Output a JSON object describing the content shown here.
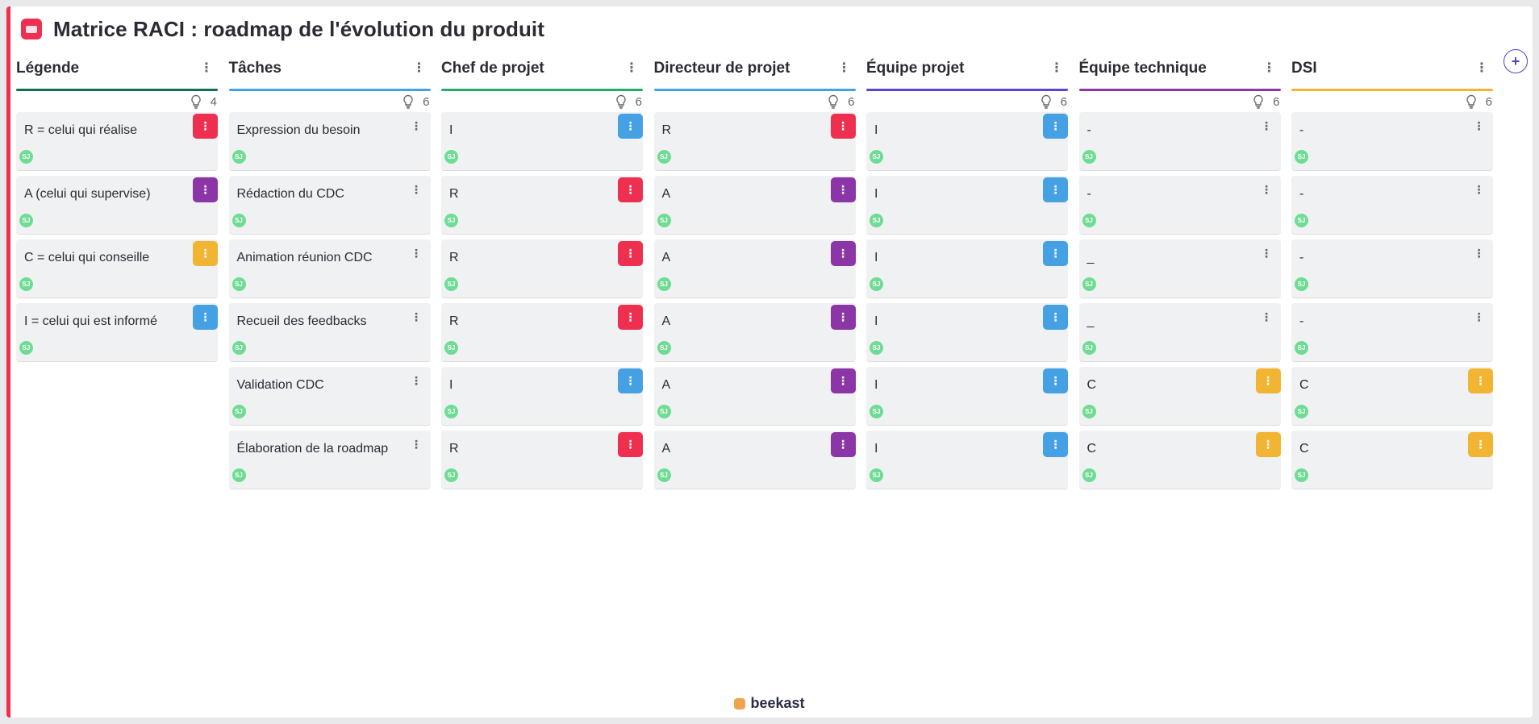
{
  "header": {
    "title": "Matrice RACI : roadmap de l'évolution du produit"
  },
  "add_column_label": "+",
  "menu_glyph": "⋮",
  "footer": {
    "brand": "beekast"
  },
  "colors": {
    "R": "#ee2f50",
    "A": "#8b35a6",
    "C": "#f1b533",
    "I": "#45a1e4",
    "none": ""
  },
  "columns": [
    {
      "title": "Légende",
      "count": "4",
      "bar": "#0d6e58",
      "cards": [
        {
          "text": "R = celui qui réalise",
          "tag": "R",
          "avatar": "SJ"
        },
        {
          "text": "A (celui qui supervise)",
          "tag": "A",
          "avatar": "SJ"
        },
        {
          "text": "C = celui qui conseille",
          "tag": "C",
          "avatar": "SJ"
        },
        {
          "text": "I = celui qui est informé",
          "tag": "I",
          "avatar": "SJ"
        }
      ]
    },
    {
      "title": "Tâches",
      "count": "6",
      "bar": "#45a1e4",
      "cards": [
        {
          "text": "Expression du besoin",
          "tag": "none",
          "avatar": "SJ"
        },
        {
          "text": "Rédaction du CDC",
          "tag": "none",
          "avatar": "SJ"
        },
        {
          "text": "Animation réunion CDC",
          "tag": "none",
          "avatar": "SJ"
        },
        {
          "text": "Recueil des feedbacks",
          "tag": "none",
          "avatar": "SJ"
        },
        {
          "text": "Validation CDC",
          "tag": "none",
          "avatar": "SJ"
        },
        {
          "text": "Élaboration de la roadmap",
          "tag": "none",
          "avatar": "SJ"
        }
      ]
    },
    {
      "title": "Chef de projet",
      "count": "6",
      "bar": "#1fae6a",
      "cards": [
        {
          "text": "I",
          "tag": "I",
          "avatar": "SJ"
        },
        {
          "text": "R",
          "tag": "R",
          "avatar": "SJ"
        },
        {
          "text": "R",
          "tag": "R",
          "avatar": "SJ"
        },
        {
          "text": "R",
          "tag": "R",
          "avatar": "SJ"
        },
        {
          "text": "I",
          "tag": "I",
          "avatar": "SJ"
        },
        {
          "text": "R",
          "tag": "R",
          "avatar": "SJ"
        }
      ]
    },
    {
      "title": "Directeur de projet",
      "count": "6",
      "bar": "#45a1e4",
      "cards": [
        {
          "text": "R",
          "tag": "R",
          "avatar": "SJ"
        },
        {
          "text": "A",
          "tag": "A",
          "avatar": "SJ"
        },
        {
          "text": "A",
          "tag": "A",
          "avatar": "SJ"
        },
        {
          "text": "A",
          "tag": "A",
          "avatar": "SJ"
        },
        {
          "text": "A",
          "tag": "A",
          "avatar": "SJ"
        },
        {
          "text": "A",
          "tag": "A",
          "avatar": "SJ"
        }
      ]
    },
    {
      "title": "Équipe projet",
      "count": "6",
      "bar": "#5b44d6",
      "cards": [
        {
          "text": "I",
          "tag": "I",
          "avatar": "SJ"
        },
        {
          "text": "I",
          "tag": "I",
          "avatar": "SJ"
        },
        {
          "text": "I",
          "tag": "I",
          "avatar": "SJ"
        },
        {
          "text": "I",
          "tag": "I",
          "avatar": "SJ"
        },
        {
          "text": "I",
          "tag": "I",
          "avatar": "SJ"
        },
        {
          "text": "I",
          "tag": "I",
          "avatar": "SJ"
        }
      ]
    },
    {
      "title": "Équipe technique",
      "count": "6",
      "bar": "#8b35a6",
      "cards": [
        {
          "text": "-",
          "tag": "none",
          "avatar": "SJ"
        },
        {
          "text": "-",
          "tag": "none",
          "avatar": "SJ"
        },
        {
          "text": "_",
          "tag": "none",
          "avatar": "SJ"
        },
        {
          "text": "_",
          "tag": "none",
          "avatar": "SJ"
        },
        {
          "text": "C",
          "tag": "C",
          "avatar": "SJ"
        },
        {
          "text": "C",
          "tag": "C",
          "avatar": "SJ"
        }
      ]
    },
    {
      "title": "DSI",
      "count": "6",
      "bar": "#f1b533",
      "cards": [
        {
          "text": "-",
          "tag": "none",
          "avatar": "SJ"
        },
        {
          "text": "-",
          "tag": "none",
          "avatar": "SJ"
        },
        {
          "text": "-",
          "tag": "none",
          "avatar": "SJ"
        },
        {
          "text": "-",
          "tag": "none",
          "avatar": "SJ"
        },
        {
          "text": "C",
          "tag": "C",
          "avatar": "SJ"
        },
        {
          "text": "C",
          "tag": "C",
          "avatar": "SJ"
        }
      ]
    }
  ]
}
